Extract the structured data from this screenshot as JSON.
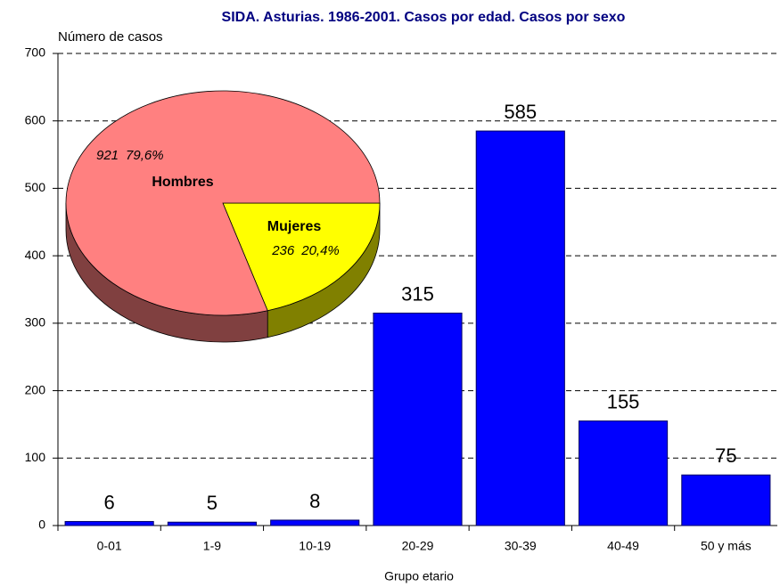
{
  "chart_data": [
    {
      "type": "bar",
      "title": "SIDA. Asturias. 1986-2001. Casos por edad. Casos por sexo",
      "y_label": "Número de casos",
      "x_label": "Grupo etario",
      "categories": [
        "0-01",
        "1-9",
        "10-19",
        "20-29",
        "30-39",
        "40-49",
        "50 y más"
      ],
      "values": [
        6,
        5,
        8,
        315,
        585,
        155,
        75
      ],
      "color": "#0000ff",
      "ylim": [
        0,
        700
      ],
      "yticks": [
        0,
        100,
        200,
        300,
        400,
        500,
        600,
        700
      ],
      "grid": true
    },
    {
      "type": "pie",
      "categories": [
        "Hombres",
        "Mujeres"
      ],
      "values": [
        921,
        236
      ],
      "percent_labels": [
        "79,6%",
        "20,4%"
      ],
      "colors": [
        "#ff8080",
        "#ffff00"
      ]
    }
  ]
}
